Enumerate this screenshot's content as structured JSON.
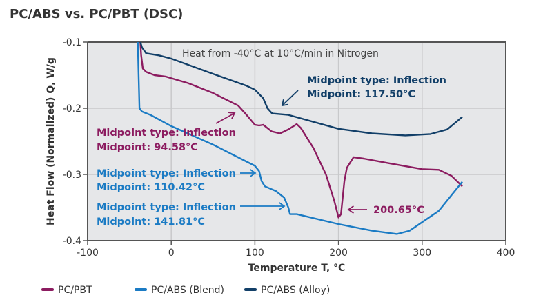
{
  "chart_data": {
    "type": "line",
    "title": "PC/ABS vs. PC/PBT (DSC)",
    "xlabel": "Temperature T, °C",
    "ylabel": "Heat Flow (Normalized) Q, W/g",
    "xlim": [
      -100,
      400
    ],
    "ylim": [
      -0.4,
      -0.1
    ],
    "xticks": [
      "-100",
      "0",
      "100",
      "200",
      "300",
      "400"
    ],
    "yticks": [
      "-0.1",
      "-0.2",
      "-0.3",
      "-0.4"
    ],
    "grid": true,
    "legend_placement": "bottom",
    "note": "Heat from -40°C at 10°C/min in Nitrogen",
    "series": [
      {
        "name": "PC/PBT",
        "color": "#8c1c60",
        "x": [
          -37,
          -36,
          -34,
          -30,
          -20,
          -7,
          20,
          50,
          80,
          90,
          100,
          105,
          110,
          120,
          130,
          140,
          150,
          155,
          170,
          185,
          195,
          200,
          203,
          207,
          210,
          218,
          230,
          260,
          300,
          320,
          335,
          348
        ],
        "y": [
          -0.1,
          -0.12,
          -0.14,
          -0.145,
          -0.15,
          -0.152,
          -0.162,
          -0.177,
          -0.196,
          -0.21,
          -0.225,
          -0.226,
          -0.225,
          -0.235,
          -0.238,
          -0.232,
          -0.224,
          -0.23,
          -0.26,
          -0.3,
          -0.34,
          -0.365,
          -0.36,
          -0.31,
          -0.29,
          -0.274,
          -0.276,
          -0.283,
          -0.292,
          -0.293,
          -0.302,
          -0.318
        ]
      },
      {
        "name": "PC/ABS (Blend)",
        "color": "#1b7bc4",
        "x": [
          -40,
          -39,
          -38,
          -35,
          -25,
          0,
          50,
          100,
          105,
          108,
          112,
          125,
          135,
          140,
          142,
          150,
          200,
          240,
          270,
          285,
          320,
          348
        ],
        "y": [
          -0.1,
          -0.15,
          -0.2,
          -0.205,
          -0.21,
          -0.227,
          -0.255,
          -0.287,
          -0.295,
          -0.31,
          -0.318,
          -0.325,
          -0.335,
          -0.35,
          -0.36,
          -0.36,
          -0.375,
          -0.385,
          -0.39,
          -0.385,
          -0.355,
          -0.311
        ]
      },
      {
        "name": "PC/ABS (Alloy)",
        "color": "#123f68",
        "x": [
          -37,
          -35,
          -30,
          -15,
          0,
          50,
          90,
          100,
          110,
          115,
          120,
          122,
          140,
          200,
          240,
          280,
          310,
          330,
          348
        ],
        "y": [
          -0.1,
          -0.108,
          -0.117,
          -0.12,
          -0.125,
          -0.148,
          -0.166,
          -0.172,
          -0.185,
          -0.2,
          -0.207,
          -0.208,
          -0.21,
          -0.231,
          -0.238,
          -0.241,
          -0.239,
          -0.232,
          -0.213
        ]
      }
    ],
    "annotations": [
      {
        "line1": "Midpoint type: Inflection",
        "line2": "Midpoint: 94.58°C",
        "color": "#8c1c60"
      },
      {
        "line1": "Midpoint type: Inflection",
        "line2": "Midpoint: 110.42°C",
        "color": "#1b7bc4"
      },
      {
        "line1": "Midpoint type: Inflection",
        "line2": "Midpoint: 141.81°C",
        "color": "#1b7bc4"
      },
      {
        "line1": "Midpoint type: Inflection",
        "line2": "Midpoint: 117.50°C",
        "color": "#123f68"
      },
      {
        "line1": "200.65°C",
        "color": "#8c1c60"
      }
    ]
  }
}
